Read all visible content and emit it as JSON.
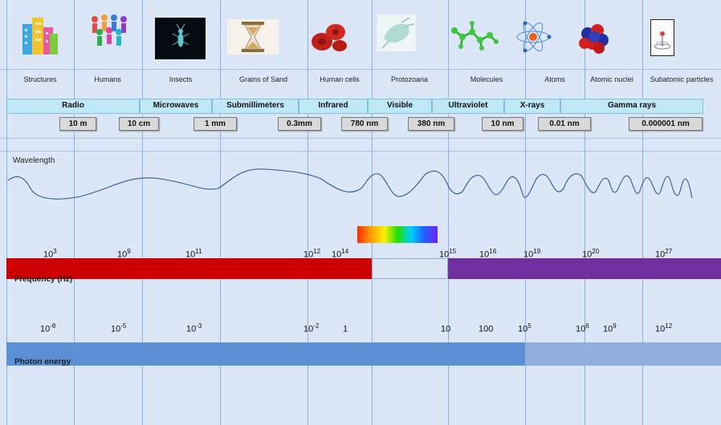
{
  "objects": [
    {
      "label": "Structures",
      "icon": "buildings-icon"
    },
    {
      "label": "Humans",
      "icon": "people-icon"
    },
    {
      "label": "Insects",
      "icon": "insect-icon"
    },
    {
      "label": "Grains of Sand",
      "icon": "hourglass-icon"
    },
    {
      "label": "Human cells",
      "icon": "red-blood-cells-icon"
    },
    {
      "label": "Protozoaria",
      "icon": "protozoa-icon"
    },
    {
      "label": "Molecules",
      "icon": "molecule-icon"
    },
    {
      "label": "Atoms",
      "icon": "atom-icon"
    },
    {
      "label": "Atomic nuclei",
      "icon": "nucleus-icon"
    },
    {
      "label": "Subatomic particles",
      "icon": "subatomic-particle-icon"
    }
  ],
  "bands": [
    "Radio",
    "Microwaves",
    "Submillimeters",
    "Infrared",
    "Visible",
    "Ultraviolet",
    "X-rays",
    "Gamma rays"
  ],
  "wavelengths": [
    "10 m",
    "10 cm",
    "1 mm",
    "0.3mm",
    "780 nm",
    "380 nm",
    "10 nm",
    "0.01 nm",
    "0.000001 nm"
  ],
  "wavelength_label": "Wavelength",
  "frequency": {
    "label": "Frequency (Hz)",
    "exponents": [
      "3",
      "9",
      "11",
      "12",
      "14",
      "15",
      "16",
      "19",
      "20",
      "27"
    ],
    "colors": {
      "radio": "#cc0000",
      "visible": "#dbe6f6",
      "high": "#7030a0"
    }
  },
  "photon_energy": {
    "label": "Photon energy",
    "ticks": [
      {
        "base": "10",
        "exp": "-8"
      },
      {
        "base": "10",
        "exp": "-5"
      },
      {
        "base": "10",
        "exp": "-3"
      },
      {
        "base": "10",
        "exp": "-2"
      },
      {
        "base": "1",
        "exp": ""
      },
      {
        "base": "10",
        "exp": ""
      },
      {
        "base": "100",
        "exp": ""
      },
      {
        "base": "10",
        "exp": "5"
      },
      {
        "base": "10",
        "exp": "6"
      },
      {
        "base": "10",
        "exp": "9"
      },
      {
        "base": "10",
        "exp": "12"
      }
    ],
    "colors": {
      "dark": "#5b8fd6",
      "light": "#8fb0dc"
    }
  }
}
